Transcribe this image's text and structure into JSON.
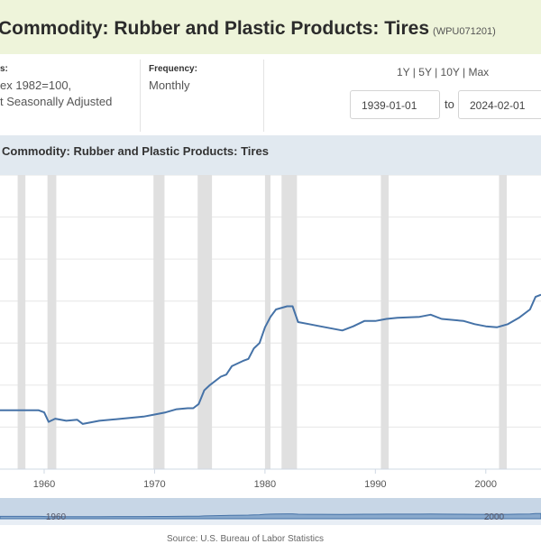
{
  "header": {
    "title": "Commodity: Rubber and Plastic Products: Tires",
    "series_id": "(WPU071201)"
  },
  "meta": {
    "units_label": "s:",
    "units_line1": "ex 1982=100,",
    "units_line2": "t Seasonally Adjusted",
    "frequency_label": "Frequency:",
    "frequency_value": "Monthly"
  },
  "controls": {
    "ranges": [
      "1Y",
      "5Y",
      "10Y",
      "Max"
    ],
    "start_date": "1939-01-01",
    "end_date": "2024-02-01",
    "to_label": "to"
  },
  "chart_data": {
    "type": "line",
    "title": "Commodity: Rubber and Plastic Products: Tires",
    "xlim": [
      1956,
      2005
    ],
    "ylim": [
      60,
      340
    ],
    "x_ticks": [
      1960,
      1970,
      1980,
      1990,
      2000
    ],
    "grid": true,
    "recessions": [
      [
        1957.6,
        1958.3
      ],
      [
        1960.3,
        1961.1
      ],
      [
        1969.9,
        1970.9
      ],
      [
        1973.9,
        1975.2
      ],
      [
        1980.0,
        1980.5
      ],
      [
        1981.5,
        1982.9
      ],
      [
        1990.5,
        1991.2
      ],
      [
        2001.2,
        2001.9
      ]
    ],
    "series": [
      {
        "color": "#4572a7",
        "x": [
          1956,
          1958,
          1959.5,
          1960,
          1960.4,
          1961,
          1962,
          1963,
          1963.5,
          1965,
          1967,
          1969,
          1970,
          1971,
          1972,
          1973,
          1973.5,
          1974,
          1974.5,
          1975,
          1976,
          1976.5,
          1977,
          1978,
          1978.5,
          1979,
          1979.5,
          1980,
          1980.5,
          1981,
          1982,
          1982.5,
          1983,
          1984,
          1985,
          1987,
          1988,
          1989,
          1990,
          1991,
          1992,
          1994,
          1995,
          1996,
          1998,
          1999,
          2000,
          2001,
          2002,
          2003,
          2004,
          2004.5,
          2005
        ],
        "values": [
          116,
          116,
          116,
          114,
          105,
          108,
          106,
          107,
          103,
          106,
          108,
          110,
          112,
          114,
          117,
          118,
          118,
          122,
          135,
          140,
          148,
          150,
          158,
          163,
          165,
          175,
          180,
          195,
          205,
          212,
          215,
          215,
          200,
          198,
          196,
          192,
          196,
          201,
          201,
          203,
          204,
          205,
          207,
          203,
          201,
          198,
          196,
          195,
          198,
          204,
          212,
          224,
          226
        ]
      }
    ]
  },
  "navigator": {
    "labels": [
      "1960",
      "2000"
    ]
  },
  "footer": {
    "source": "Source: U.S. Bureau of Labor Statistics"
  }
}
